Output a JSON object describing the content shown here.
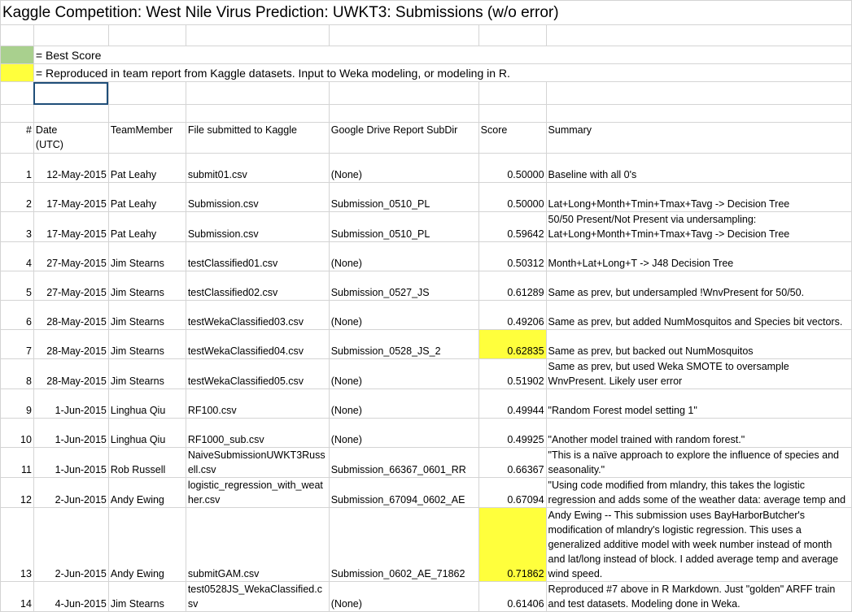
{
  "title": "Kaggle Competition: West Nile Virus Prediction: UWKT3: Submissions (w/o error)",
  "legend": {
    "best": "= Best Score",
    "reproduced": "= Reproduced in team report from Kaggle datasets. Input to Weka modeling, or modeling in R."
  },
  "colors": {
    "best": "#a9d08e",
    "reproduced": "#ffff3c",
    "selection": "#1f4e79"
  },
  "headers": {
    "num": "#",
    "date": "Date",
    "date2": "(UTC)",
    "member": "TeamMember",
    "file": "File submitted to Kaggle",
    "dir": "Google Drive Report SubDir",
    "score": "Score",
    "summary": "Summary"
  },
  "rows": [
    {
      "num": "1",
      "date": "12-May-2015",
      "member": "Pat Leahy",
      "file": "submit01.csv",
      "dir": "(None)",
      "score": "0.50000",
      "summary": "Baseline with all 0's"
    },
    {
      "num": "2",
      "date": "17-May-2015",
      "member": "Pat Leahy",
      "file": "Submission.csv",
      "dir": "Submission_0510_PL",
      "score": "0.50000",
      "summary": "Lat+Long+Month+Tmin+Tmax+Tavg -> Decision Tree"
    },
    {
      "num": "3",
      "date": "17-May-2015",
      "member": "Pat Leahy",
      "file": "Submission.csv",
      "dir": "Submission_0510_PL",
      "score": "0.59642",
      "summary": "50/50 Present/Not Present via undersampling: Lat+Long+Month+Tmin+Tmax+Tavg -> Decision Tree"
    },
    {
      "num": "4",
      "date": "27-May-2015",
      "member": "Jim Stearns",
      "file": "testClassified01.csv",
      "dir": "(None)",
      "score": "0.50312",
      "summary": "Month+Lat+Long+T -> J48 Decision Tree"
    },
    {
      "num": "5",
      "date": "27-May-2015",
      "member": "Jim Stearns",
      "file": "testClassified02.csv",
      "dir": "Submission_0527_JS",
      "score": "0.61289",
      "summary": "Same as prev, but undersampled !WnvPresent for 50/50."
    },
    {
      "num": "6",
      "date": "28-May-2015",
      "member": "Jim Stearns",
      "file": "testWekaClassified03.csv",
      "dir": "(None)",
      "score": "0.49206",
      "summary": "Same as prev, but added NumMosquitos and Species bit vectors."
    },
    {
      "num": "7",
      "date": "28-May-2015",
      "member": "Jim Stearns",
      "file": "testWekaClassified04.csv",
      "dir": "Submission_0528_JS_2",
      "score": "0.62835",
      "summary": "Same as prev, but backed out NumMosquitos"
    },
    {
      "num": "8",
      "date": "28-May-2015",
      "member": "Jim Stearns",
      "file": "testWekaClassified05.csv",
      "dir": "(None)",
      "score": "0.51902",
      "summary": "Same as prev, but used Weka SMOTE to oversample WnvPresent. Likely user error"
    },
    {
      "num": "9",
      "date": "1-Jun-2015",
      "member": "Linghua Qiu",
      "file": "RF100.csv",
      "dir": "(None)",
      "score": "0.49944",
      "summary": "\"Random Forest model setting 1\""
    },
    {
      "num": "10",
      "date": "1-Jun-2015",
      "member": "Linghua Qiu",
      "file": "RF1000_sub.csv",
      "dir": "(None)",
      "score": "0.49925",
      "summary": "\"Another model trained with random forest.\""
    },
    {
      "num": "11",
      "date": "1-Jun-2015",
      "member": "Rob Russell",
      "file": "NaiveSubmissionUWKT3Russell.csv",
      "dir": "Submission_66367_0601_RR",
      "score": "0.66367",
      "summary": "\"This is a naïve approach to explore the influence of species and seasonality.\""
    },
    {
      "num": "12",
      "date": "2-Jun-2015",
      "member": "Andy Ewing",
      "file": "logistic_regression_with_weather.csv",
      "dir": "Submission_67094_0602_AE",
      "score": "0.67094",
      "summary": "\"Using code modified from mlandry, this takes the logistic regression and adds some of the weather data: average temp and"
    },
    {
      "num": "13",
      "date": "2-Jun-2015",
      "member": "Andy Ewing",
      "file": "submitGAM.csv",
      "dir": "Submission_0602_AE_71862",
      "score": "0.71862",
      "summary": "Andy Ewing -- This submission uses BayHarborButcher's modification of mlandry's logistic regression. This uses a generalized additive model with week number instead of month and lat/long instead of block. I added average temp and average wind speed."
    },
    {
      "num": "14",
      "date": "4-Jun-2015",
      "member": "Jim Stearns",
      "file": "test0528JS_WekaClassified.csv",
      "dir": "(None)",
      "score": "0.61406",
      "summary": "Reproduced #7 above in R Markdown. Just \"golden\" ARFF train and test datasets. Modeling done in Weka."
    }
  ]
}
